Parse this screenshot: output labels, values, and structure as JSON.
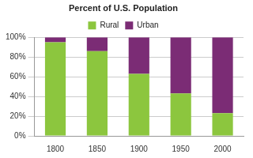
{
  "chart_data": {
    "type": "bar",
    "title": "Percent of U.S. Population",
    "categories": [
      "1800",
      "1850",
      "1900",
      "1950",
      "2000"
    ],
    "series": [
      {
        "name": "Rural",
        "color": "#8cc63e",
        "values": [
          95,
          86,
          63,
          43,
          23
        ]
      },
      {
        "name": "Urban",
        "color": "#7b2c75",
        "values": [
          5,
          14,
          37,
          57,
          77
        ]
      }
    ],
    "stacked": true,
    "ylim": [
      0,
      100
    ],
    "yticks": [
      {
        "value": 0,
        "label": "0%"
      },
      {
        "value": 20,
        "label": "20%"
      },
      {
        "value": 40,
        "label": "40%"
      },
      {
        "value": 60,
        "label": "60%"
      },
      {
        "value": 80,
        "label": "80%"
      },
      {
        "value": 100,
        "label": "100%"
      }
    ],
    "grid": true,
    "legend": "top"
  }
}
